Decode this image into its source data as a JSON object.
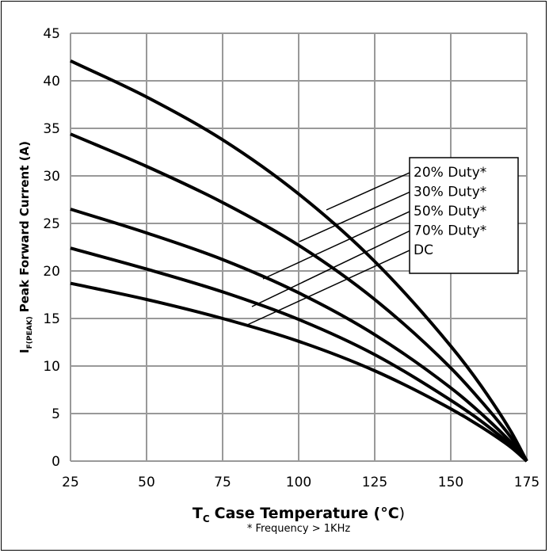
{
  "chart_data": {
    "type": "line",
    "xlabel": {
      "main": "T",
      "sub": "C",
      "text": "Case Temperature (",
      "degree": "°C",
      "close": ")"
    },
    "ylabel": {
      "main": "I",
      "sub": "F(PEAK)",
      "text": "Peak Forward Current (A)"
    },
    "footnote": "* Frequency > 1KHz",
    "xlim": [
      25,
      175
    ],
    "ylim": [
      0,
      45
    ],
    "x_ticks": [
      25,
      50,
      75,
      100,
      125,
      150,
      175
    ],
    "y_ticks": [
      0,
      5,
      10,
      15,
      20,
      25,
      30,
      35,
      40,
      45
    ],
    "grid": true,
    "legend_position": "top-right",
    "colors": {
      "line": "#000000",
      "grid": "#999999",
      "background": "#ffffff"
    },
    "series": [
      {
        "name": "20% Duty*",
        "x": [
          25,
          50,
          75,
          100,
          125,
          150,
          160,
          170,
          175
        ],
        "y": [
          42.1,
          38.3,
          33.8,
          28.1,
          21.0,
          12.1,
          7.9,
          3.0,
          0
        ]
      },
      {
        "name": "30% Duty*",
        "x": [
          25,
          50,
          75,
          100,
          125,
          150,
          160,
          170,
          175
        ],
        "y": [
          34.4,
          31.0,
          27.2,
          22.7,
          17.0,
          9.8,
          6.3,
          2.4,
          0
        ]
      },
      {
        "name": "50% Duty*",
        "x": [
          25,
          50,
          75,
          100,
          125,
          150,
          160,
          170,
          175
        ],
        "y": [
          26.5,
          24.0,
          21.2,
          17.7,
          13.3,
          7.7,
          5.0,
          1.9,
          0
        ]
      },
      {
        "name": "70% Duty*",
        "x": [
          25,
          50,
          75,
          100,
          125,
          150,
          160,
          170,
          175
        ],
        "y": [
          22.4,
          20.2,
          17.8,
          14.9,
          11.2,
          6.4,
          4.2,
          1.6,
          0
        ]
      },
      {
        "name": "DC",
        "x": [
          25,
          50,
          75,
          100,
          125,
          150,
          160,
          170,
          175
        ],
        "y": [
          18.7,
          17.0,
          15.0,
          12.6,
          9.5,
          5.5,
          3.6,
          1.4,
          0
        ]
      }
    ]
  }
}
